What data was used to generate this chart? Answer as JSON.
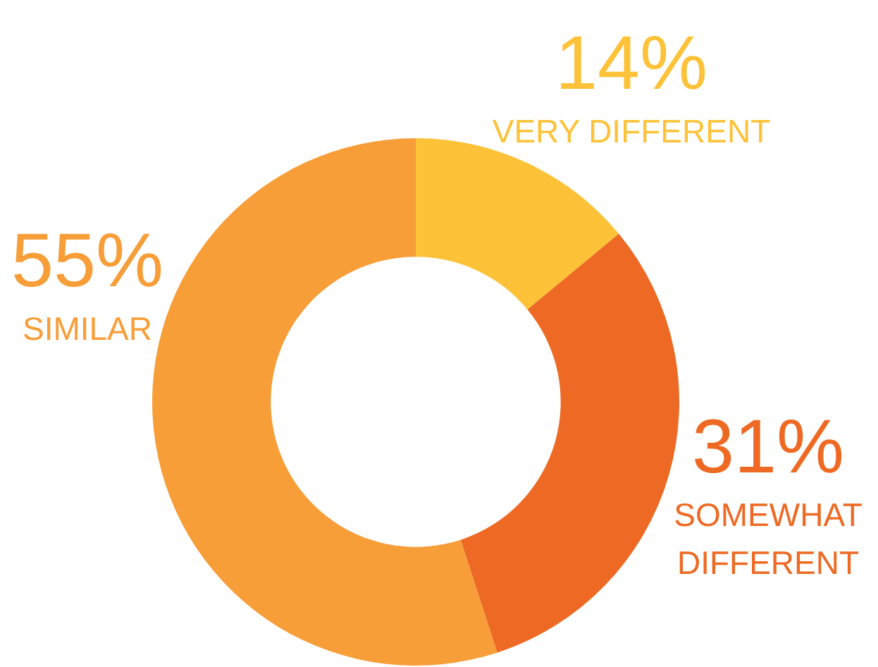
{
  "chart_data": {
    "type": "donut",
    "categories": [
      "VERY DIFFERENT",
      "SOMEWHAT DIFFERENT",
      "SIMILAR"
    ],
    "values": [
      14,
      31,
      55
    ],
    "colors": [
      "#fdc238",
      "#ee6a24",
      "#f79e38"
    ],
    "value_labels": [
      "14%",
      "31%",
      "55%"
    ],
    "legend": false
  }
}
